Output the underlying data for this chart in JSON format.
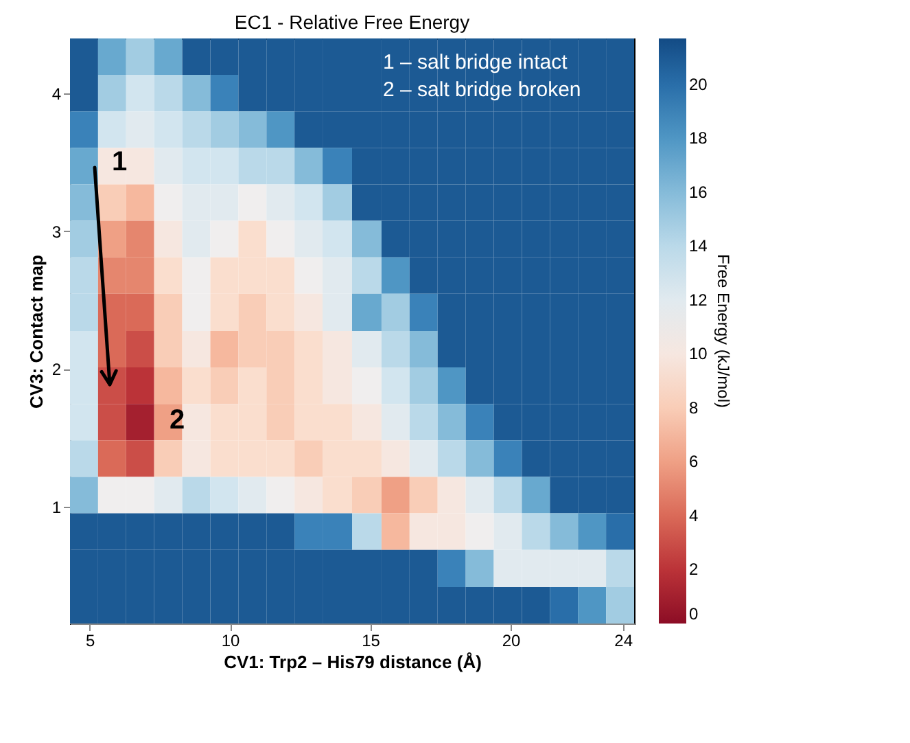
{
  "chart_data": {
    "type": "heatmap",
    "title": "EC1 - Relative Free Energy",
    "xlabel": "CV1: Trp2 – His79 distance (Å)",
    "ylabel": "CV3: Contact map",
    "clabel": "Free Energy (kJ/mol)",
    "x": [
      4.8,
      5.8,
      6.8,
      7.8,
      8.8,
      9.8,
      10.8,
      11.8,
      12.8,
      13.8,
      14.9,
      15.9,
      16.9,
      17.9,
      18.9,
      19.9,
      20.9,
      21.9,
      22.9,
      23.9
    ],
    "y": [
      4.27,
      4.0,
      3.74,
      3.47,
      3.21,
      2.94,
      2.68,
      2.41,
      2.14,
      1.88,
      1.61,
      1.35,
      1.08,
      0.82,
      0.55,
      0.28
    ],
    "xlim": [
      4.3,
      24.4
    ],
    "ylim": [
      0.15,
      4.4
    ],
    "xticks": [
      5,
      10,
      15,
      20,
      24
    ],
    "yticks": [
      1,
      2,
      3,
      4
    ],
    "clim": [
      0,
      21.7
    ],
    "cticks": [
      0,
      2,
      4,
      6,
      8,
      10,
      12,
      14,
      16,
      18,
      20
    ],
    "cells": [
      [
        21,
        17,
        15,
        17,
        21,
        21,
        21,
        21,
        21,
        21,
        21,
        21,
        21,
        21,
        21,
        21,
        21,
        21,
        21,
        21
      ],
      [
        21,
        15,
        13,
        14,
        16,
        19,
        21,
        21,
        21,
        21,
        21,
        21,
        21,
        21,
        21,
        21,
        21,
        21,
        21,
        21
      ],
      [
        19,
        13,
        12,
        13,
        14,
        15,
        16,
        18,
        21,
        21,
        21,
        21,
        21,
        21,
        21,
        21,
        21,
        21,
        21,
        21
      ],
      [
        17,
        10,
        10,
        12,
        13,
        13,
        14,
        14,
        16,
        19,
        21,
        21,
        21,
        21,
        21,
        21,
        21,
        21,
        21,
        21
      ],
      [
        16,
        8,
        7,
        11,
        12,
        12,
        11,
        12,
        13,
        15,
        21,
        21,
        21,
        21,
        21,
        21,
        21,
        21,
        21,
        21
      ],
      [
        15,
        6,
        5,
        10,
        12,
        11,
        9,
        11,
        12,
        13,
        16,
        21,
        21,
        21,
        21,
        21,
        21,
        21,
        21,
        21
      ],
      [
        14,
        5,
        5,
        9,
        11,
        9,
        9,
        9,
        11,
        12,
        14,
        18,
        21,
        21,
        21,
        21,
        21,
        21,
        21,
        21
      ],
      [
        14,
        4,
        4,
        8,
        11,
        9,
        8,
        9,
        10,
        12,
        17,
        15,
        19,
        21,
        21,
        21,
        21,
        21,
        21,
        21
      ],
      [
        13,
        4,
        3,
        8,
        10,
        7,
        8,
        8,
        9,
        10,
        12,
        14,
        16,
        21,
        21,
        21,
        21,
        21,
        21,
        21
      ],
      [
        13,
        3,
        2,
        7,
        9,
        8,
        9,
        8,
        9,
        10,
        11,
        13,
        15,
        18,
        21,
        21,
        21,
        21,
        21,
        21
      ],
      [
        13,
        3,
        1,
        6,
        10,
        9,
        9,
        8,
        9,
        9,
        10,
        12,
        14,
        16,
        19,
        21,
        21,
        21,
        21,
        21
      ],
      [
        14,
        4,
        3,
        8,
        10,
        9,
        9,
        9,
        8,
        9,
        9,
        10,
        12,
        14,
        16,
        19,
        21,
        21,
        21,
        21
      ],
      [
        16,
        11,
        11,
        12,
        14,
        13,
        12,
        11,
        10,
        9,
        8,
        6,
        8,
        10,
        12,
        14,
        17,
        21,
        21,
        21
      ],
      [
        21,
        21,
        21,
        21,
        21,
        21,
        21,
        21,
        19,
        19,
        14,
        7,
        10,
        10,
        11,
        12,
        14,
        16,
        18,
        20
      ],
      [
        21,
        21,
        21,
        21,
        21,
        21,
        21,
        21,
        21,
        21,
        21,
        21,
        21,
        19,
        16,
        12,
        12,
        12,
        12,
        14
      ],
      [
        21,
        21,
        21,
        21,
        21,
        21,
        21,
        21,
        21,
        21,
        21,
        21,
        21,
        21,
        21,
        21,
        21,
        20,
        18,
        15
      ]
    ],
    "annotations": [
      "1 – salt bridge intact",
      "2 – salt bridge broken",
      "1",
      "2"
    ]
  }
}
